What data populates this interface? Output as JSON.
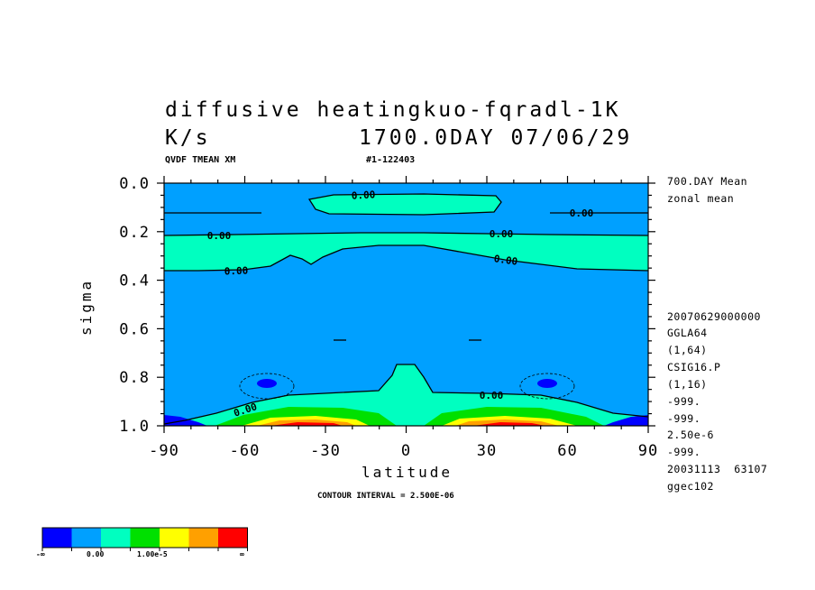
{
  "header": {
    "title_line1": "diffusive heatingkuo-fqradl-1K",
    "units": "K/s",
    "time_label": "1700.0DAY 07/06/29",
    "variable_label": "QVDF TMEAN XM",
    "run_id": "#1-122403"
  },
  "side_info": [
    "700.DAY Mean",
    "zonal mean",
    "20070629000000",
    "GGLA64",
    "(1,64)",
    "CSIG16.P",
    "(1,16)",
    "-999.",
    "-999.",
    "2.50e-6",
    "-999.",
    "20031113  63107",
    "ggec102"
  ],
  "footer": {
    "contour_interval": "CONTOUR INTERVAL = 2.500E-06"
  },
  "colorbar": {
    "colors": [
      "#0000ff",
      "#00a0ff",
      "#00ffc0",
      "#00e000",
      "#ffff00",
      "#ffa000",
      "#ff0000"
    ],
    "labels": [
      "-∞",
      "0.00",
      "1.00e-5",
      "∞"
    ]
  },
  "chart_data": {
    "type": "contour",
    "title": "diffusive heatingkuo-fqradl-1K",
    "xlabel": "latitude",
    "ylabel": "sigma",
    "xlim": [
      -90,
      90
    ],
    "ylim": [
      1.0,
      0.0
    ],
    "x_ticks": [
      -90,
      -60,
      -30,
      0,
      30,
      60,
      90
    ],
    "x_tick_labels": [
      "-90",
      "-60",
      "-30",
      "0",
      "30",
      "60",
      "90"
    ],
    "y_ticks": [
      0.0,
      0.2,
      0.4,
      0.6,
      0.8,
      1.0
    ],
    "y_tick_labels": [
      "0.0",
      "0.2",
      "0.4",
      "0.6",
      "0.8",
      "1.0"
    ],
    "contour_interval": 2.5e-06,
    "contour_labels": [
      "0.00",
      "0.00",
      "0.00",
      "0.00",
      "0.00",
      "0.00",
      "0.00",
      "0.00"
    ],
    "fill_colors": {
      "negative_strong": "#0000ff",
      "negative": "#00a0ff",
      "near_zero_positive": "#00ffc0",
      "positive": "#00e000",
      "higher": "#ffff00",
      "high": "#ffa000",
      "highest": "#ff0000"
    }
  }
}
